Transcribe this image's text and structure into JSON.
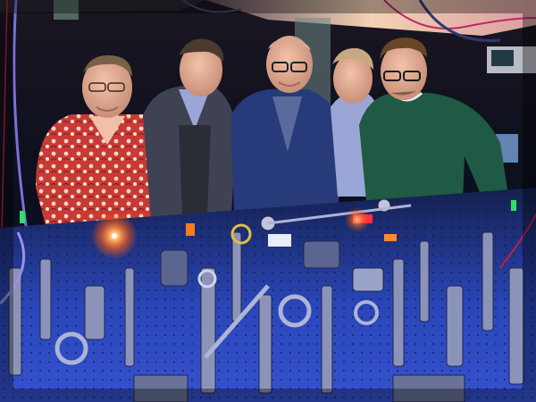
{
  "scene": {
    "subject": "five-researchers-behind-optical-table",
    "palette": {
      "background": "#0b0f1e",
      "ceiling_light": "#f1c9a8",
      "table_blue": "#2a46b8",
      "laser_orange": "#ff7a1a",
      "metal": "#8b93b8",
      "shirt_red": "#c83a34",
      "blazer_navy": "#273a7a",
      "sweater_green": "#1f5a45",
      "blazer_grey": "#3f4252",
      "shirt_lavender": "#9aa6d6"
    },
    "people_count": 5
  }
}
